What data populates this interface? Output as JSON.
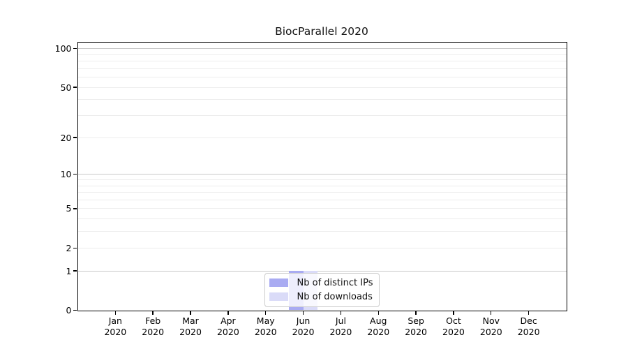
{
  "title": "BiocParallel 2020",
  "colors": {
    "distinct_ips": "#a9abf2",
    "downloads": "#dadbf8",
    "grid_decade": "#c9c9c9",
    "grid_minor": "#ededed",
    "axis": "#000000"
  },
  "legend": {
    "items": [
      {
        "label": "Nb of distinct IPs",
        "color": "#a9abf2"
      },
      {
        "label": "Nb of downloads",
        "color": "#dadbf8"
      }
    ],
    "position": "lower center"
  },
  "chart_data": {
    "type": "bar",
    "title": "BiocParallel 2020",
    "categories": [
      {
        "month": "Jan",
        "year": "2020"
      },
      {
        "month": "Feb",
        "year": "2020"
      },
      {
        "month": "Mar",
        "year": "2020"
      },
      {
        "month": "Apr",
        "year": "2020"
      },
      {
        "month": "May",
        "year": "2020"
      },
      {
        "month": "Jun",
        "year": "2020"
      },
      {
        "month": "Jul",
        "year": "2020"
      },
      {
        "month": "Aug",
        "year": "2020"
      },
      {
        "month": "Sep",
        "year": "2020"
      },
      {
        "month": "Oct",
        "year": "2020"
      },
      {
        "month": "Nov",
        "year": "2020"
      },
      {
        "month": "Dec",
        "year": "2020"
      }
    ],
    "series": [
      {
        "name": "Nb of distinct IPs",
        "color": "#a9abf2",
        "values": [
          0,
          0,
          0,
          0,
          0,
          1,
          0,
          0,
          0,
          0,
          0,
          0
        ]
      },
      {
        "name": "Nb of downloads",
        "color": "#dadbf8",
        "values": [
          0,
          0,
          0,
          0,
          0,
          1,
          0,
          0,
          0,
          0,
          0,
          0
        ]
      }
    ],
    "xlabel": "",
    "ylabel": "",
    "yscale": "log1p",
    "ylim": [
      0,
      112
    ],
    "y_ticks_labeled": [
      0,
      1,
      2,
      5,
      10,
      20,
      50,
      100
    ],
    "y_gridlines_decade": [
      1,
      10,
      100
    ],
    "grid": true,
    "legend_position": "lower center"
  }
}
